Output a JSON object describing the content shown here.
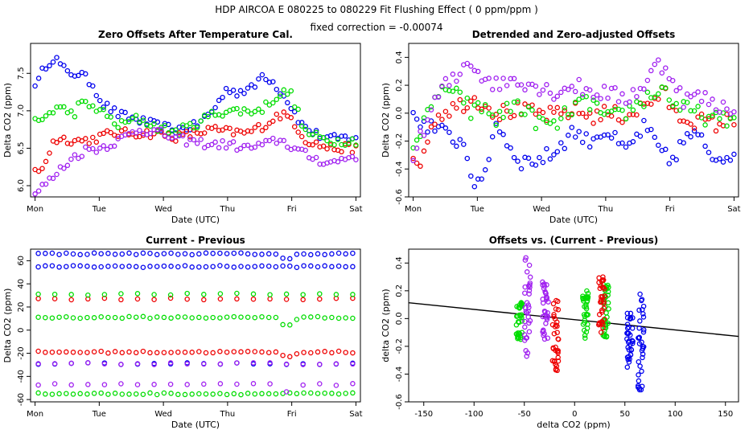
{
  "header": {
    "title": "HDP    AIRCOA E    080225 to 080229    Fit Flushing Effect ( 0 ppm/ppm )",
    "subtitle": "fixed correction = -0.00074"
  },
  "colors": {
    "blue": "#0000ee",
    "red": "#ee0000",
    "green": "#00dd00",
    "purple": "#a020f0",
    "black": "#000000"
  },
  "chart_data": [
    {
      "type": "scatter",
      "title": "Zero Offsets After Temperature Cal.",
      "xlabel": "Date (UTC)",
      "ylabel": "Delta CO2 (ppm)",
      "xlim": [
        -0.07,
        5.07
      ],
      "ylim": [
        5.85,
        7.9
      ],
      "xticks": [
        0,
        1,
        2,
        3,
        4,
        5
      ],
      "xtick_labels": [
        "Mon",
        "Tue",
        "Wed",
        "Thu",
        "Fri",
        "Sat"
      ],
      "yticks": [
        6.0,
        6.5,
        7.0,
        7.5
      ],
      "ytick_labels": [
        "6.0",
        "6.5",
        "7.0",
        "7.5"
      ],
      "series": [
        {
          "name": "blue",
          "anchors": [
            [
              0.05,
              7.38
            ],
            [
              0.15,
              7.6
            ],
            [
              0.3,
              7.72
            ],
            [
              0.5,
              7.5
            ],
            [
              0.7,
              7.5
            ],
            [
              0.9,
              7.35
            ],
            [
              1.05,
              7.1
            ],
            [
              1.3,
              6.95
            ],
            [
              1.6,
              6.88
            ],
            [
              1.9,
              6.8
            ],
            [
              2.2,
              6.75
            ],
            [
              2.5,
              6.8
            ],
            [
              2.75,
              6.98
            ],
            [
              3.0,
              7.3
            ],
            [
              3.15,
              7.25
            ],
            [
              3.4,
              7.3
            ],
            [
              3.55,
              7.5
            ],
            [
              3.75,
              7.35
            ],
            [
              3.95,
              7.12
            ],
            [
              4.15,
              6.82
            ],
            [
              4.35,
              6.7
            ],
            [
              4.6,
              6.62
            ],
            [
              4.95,
              6.65
            ]
          ]
        },
        {
          "name": "red",
          "anchors": [
            [
              0.05,
              6.18
            ],
            [
              0.15,
              6.3
            ],
            [
              0.3,
              6.62
            ],
            [
              0.5,
              6.62
            ],
            [
              0.7,
              6.6
            ],
            [
              0.9,
              6.62
            ],
            [
              1.1,
              6.68
            ],
            [
              1.3,
              6.7
            ],
            [
              1.6,
              6.7
            ],
            [
              1.9,
              6.7
            ],
            [
              2.2,
              6.65
            ],
            [
              2.5,
              6.7
            ],
            [
              2.75,
              6.75
            ],
            [
              3.0,
              6.72
            ],
            [
              3.3,
              6.7
            ],
            [
              3.6,
              6.82
            ],
            [
              3.8,
              6.95
            ],
            [
              4.0,
              6.9
            ],
            [
              4.2,
              6.62
            ],
            [
              4.4,
              6.55
            ],
            [
              4.6,
              6.5
            ],
            [
              4.95,
              6.5
            ]
          ]
        },
        {
          "name": "green",
          "anchors": [
            [
              0.05,
              6.85
            ],
            [
              0.2,
              6.95
            ],
            [
              0.35,
              7.05
            ],
            [
              0.5,
              7.0
            ],
            [
              0.6,
              6.95
            ],
            [
              0.7,
              7.1
            ],
            [
              0.9,
              7.05
            ],
            [
              1.0,
              7.02
            ],
            [
              1.3,
              6.8
            ],
            [
              1.6,
              6.9
            ],
            [
              1.9,
              6.78
            ],
            [
              2.2,
              6.72
            ],
            [
              2.5,
              6.82
            ],
            [
              2.75,
              6.95
            ],
            [
              3.0,
              7.0
            ],
            [
              3.3,
              7.0
            ],
            [
              3.5,
              7.0
            ],
            [
              3.7,
              7.15
            ],
            [
              3.9,
              7.25
            ],
            [
              4.0,
              7.22
            ],
            [
              4.2,
              6.72
            ],
            [
              4.4,
              6.65
            ],
            [
              4.6,
              6.6
            ],
            [
              4.95,
              6.6
            ]
          ]
        },
        {
          "name": "purple",
          "anchors": [
            [
              0.02,
              5.9
            ],
            [
              0.1,
              5.98
            ],
            [
              0.25,
              6.08
            ],
            [
              0.4,
              6.22
            ],
            [
              0.6,
              6.38
            ],
            [
              0.8,
              6.48
            ],
            [
              1.0,
              6.5
            ],
            [
              1.3,
              6.6
            ],
            [
              1.6,
              6.75
            ],
            [
              1.9,
              6.72
            ],
            [
              2.2,
              6.62
            ],
            [
              2.5,
              6.58
            ],
            [
              2.75,
              6.55
            ],
            [
              3.0,
              6.55
            ],
            [
              3.3,
              6.5
            ],
            [
              3.6,
              6.55
            ],
            [
              3.8,
              6.62
            ],
            [
              4.0,
              6.52
            ],
            [
              4.2,
              6.42
            ],
            [
              4.4,
              6.35
            ],
            [
              4.6,
              6.3
            ],
            [
              4.95,
              6.4
            ]
          ]
        }
      ]
    },
    {
      "type": "scatter",
      "title": "Detrended and Zero-adjusted Offsets",
      "xlabel": "Date (UTC)",
      "ylabel": "Delta CO2 (ppm)",
      "xlim": [
        -0.07,
        5.07
      ],
      "ylim": [
        -0.6,
        0.5
      ],
      "xticks": [
        0,
        1,
        2,
        3,
        4,
        5
      ],
      "xtick_labels": [
        "Mon",
        "Tue",
        "Wed",
        "Thu",
        "Fri",
        "Sat"
      ],
      "yticks": [
        -0.6,
        -0.4,
        -0.2,
        0.0,
        0.2,
        0.4
      ],
      "ytick_labels": [
        "-0.6",
        "-0.4",
        "-0.2",
        "0.0",
        "0.2",
        "0.4"
      ],
      "series": [
        {
          "name": "blue",
          "anchors": [
            [
              0.1,
              -0.05
            ],
            [
              0.3,
              -0.1
            ],
            [
              0.5,
              -0.15
            ],
            [
              0.8,
              -0.22
            ],
            [
              0.95,
              -0.5
            ],
            [
              1.05,
              -0.55
            ],
            [
              1.3,
              -0.05
            ],
            [
              1.5,
              -0.25
            ],
            [
              1.7,
              -0.35
            ],
            [
              2.0,
              -0.33
            ],
            [
              2.2,
              -0.28
            ],
            [
              2.5,
              -0.12
            ],
            [
              2.7,
              -0.2
            ],
            [
              3.0,
              -0.12
            ],
            [
              3.3,
              -0.28
            ],
            [
              3.6,
              -0.1
            ],
            [
              3.9,
              -0.3
            ],
            [
              4.0,
              -0.35
            ],
            [
              4.3,
              -0.15
            ],
            [
              4.5,
              -0.2
            ],
            [
              4.7,
              -0.32
            ],
            [
              4.95,
              -0.28
            ]
          ]
        },
        {
          "name": "red",
          "anchors": [
            [
              0.05,
              -0.38
            ],
            [
              0.15,
              -0.3
            ],
            [
              0.3,
              -0.05
            ],
            [
              0.5,
              0.02
            ],
            [
              0.7,
              0.05
            ],
            [
              0.9,
              0.1
            ],
            [
              1.1,
              0.08
            ],
            [
              1.3,
              0.0
            ],
            [
              1.6,
              0.02
            ],
            [
              1.9,
              0.0
            ],
            [
              2.2,
              -0.02
            ],
            [
              2.5,
              0.02
            ],
            [
              2.8,
              -0.02
            ],
            [
              3.0,
              0.0
            ],
            [
              3.3,
              -0.02
            ],
            [
              3.6,
              0.05
            ],
            [
              3.9,
              0.15
            ],
            [
              4.1,
              -0.02
            ],
            [
              4.4,
              -0.05
            ],
            [
              4.7,
              -0.08
            ],
            [
              4.95,
              -0.05
            ]
          ]
        },
        {
          "name": "green",
          "anchors": [
            [
              0.05,
              -0.2
            ],
            [
              0.15,
              -0.1
            ],
            [
              0.3,
              0.05
            ],
            [
              0.45,
              0.2
            ],
            [
              0.6,
              0.1
            ],
            [
              0.75,
              0.15
            ],
            [
              0.9,
              0.0
            ],
            [
              1.1,
              0.05
            ],
            [
              1.3,
              -0.05
            ],
            [
              1.6,
              0.08
            ],
            [
              1.9,
              -0.05
            ],
            [
              2.2,
              -0.1
            ],
            [
              2.5,
              0.05
            ],
            [
              2.8,
              0.08
            ],
            [
              3.0,
              -0.05
            ],
            [
              3.3,
              0.0
            ],
            [
              3.6,
              0.1
            ],
            [
              3.9,
              0.18
            ],
            [
              4.1,
              0.05
            ],
            [
              4.4,
              0.0
            ],
            [
              4.7,
              -0.05
            ],
            [
              4.95,
              -0.05
            ]
          ]
        },
        {
          "name": "purple",
          "anchors": [
            [
              0.02,
              -0.28
            ],
            [
              0.15,
              -0.15
            ],
            [
              0.3,
              0.05
            ],
            [
              0.5,
              0.2
            ],
            [
              0.7,
              0.25
            ],
            [
              0.85,
              0.4
            ],
            [
              1.0,
              0.3
            ],
            [
              1.3,
              0.2
            ],
            [
              1.6,
              0.25
            ],
            [
              1.9,
              0.2
            ],
            [
              2.2,
              0.15
            ],
            [
              2.5,
              0.2
            ],
            [
              2.8,
              0.15
            ],
            [
              3.0,
              0.15
            ],
            [
              3.3,
              0.1
            ],
            [
              3.6,
              0.2
            ],
            [
              3.8,
              0.35
            ],
            [
              4.0,
              0.3
            ],
            [
              4.2,
              0.1
            ],
            [
              4.5,
              0.12
            ],
            [
              4.7,
              0.05
            ],
            [
              4.95,
              0.05
            ]
          ]
        }
      ]
    },
    {
      "type": "scatter",
      "title": "Current - Previous",
      "xlabel": "Date (UTC)",
      "ylabel": "Delta CO2 (ppm)",
      "xlim": [
        -0.07,
        5.07
      ],
      "ylim": [
        -62,
        70
      ],
      "xticks": [
        0,
        1,
        2,
        3,
        4,
        5
      ],
      "xtick_labels": [
        "Mon",
        "Tue",
        "Wed",
        "Thu",
        "Fri",
        "Sat"
      ],
      "yticks": [
        -60,
        -40,
        -20,
        0,
        20,
        40,
        60
      ],
      "ytick_labels": [
        "-60",
        "-40",
        "-20",
        "0",
        "20",
        "40",
        "60"
      ],
      "series": [
        {
          "name": "blue",
          "levels": [
            66,
            55,
            -29
          ]
        },
        {
          "name": "red",
          "levels": [
            27,
            -19
          ]
        },
        {
          "name": "green",
          "levels": [
            31,
            11,
            -55
          ]
        },
        {
          "name": "purple",
          "levels": [
            -29,
            -47
          ]
        }
      ]
    },
    {
      "type": "scatter",
      "title": "Offsets vs. (Current - Previous)",
      "xlabel": "delta CO2 (ppm)",
      "ylabel": "delta CO2 (ppm)",
      "xlim": [
        -165,
        163
      ],
      "ylim": [
        -0.6,
        0.5
      ],
      "xticks": [
        -150,
        -100,
        -50,
        0,
        50,
        100,
        150
      ],
      "xtick_labels": [
        "-150",
        "-100",
        "-50",
        "0",
        "50",
        "100",
        "150"
      ],
      "yticks": [
        -0.6,
        -0.4,
        -0.2,
        0.0,
        0.2,
        0.4
      ],
      "ytick_labels": [
        "-0.6",
        "-0.4",
        "-0.2",
        "0.0",
        "0.2",
        "0.4"
      ],
      "fit_line": {
        "slope": -0.00074,
        "intercept": -0.008,
        "x": [
          -165,
          163
        ]
      },
      "series": [
        {
          "name": "green",
          "clusters": [
            [
              -55,
              -0.15,
              0.12
            ],
            [
              11,
              -0.15,
              0.2
            ],
            [
              31,
              -0.15,
              0.25
            ]
          ]
        },
        {
          "name": "purple",
          "clusters": [
            [
              -47,
              -0.28,
              0.45
            ],
            [
              -29,
              -0.15,
              0.3
            ]
          ]
        },
        {
          "name": "red",
          "clusters": [
            [
              -19,
              -0.38,
              0.15
            ],
            [
              27,
              -0.1,
              0.3
            ]
          ]
        },
        {
          "name": "blue",
          "clusters": [
            [
              55,
              -0.35,
              0.05
            ],
            [
              66,
              -0.55,
              0.18
            ]
          ]
        }
      ]
    }
  ]
}
